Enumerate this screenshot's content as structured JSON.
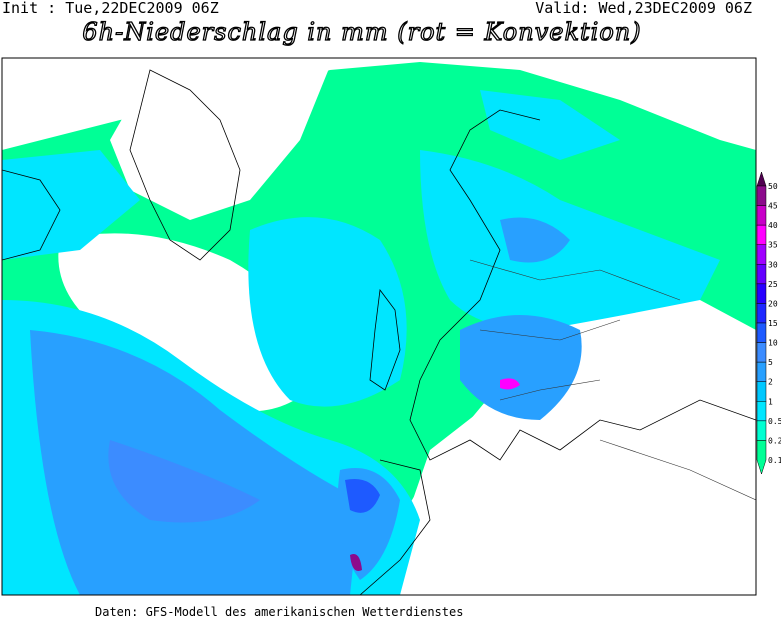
{
  "header": {
    "init": "Init : Tue,22DEC2009 06Z",
    "valid": "Valid: Wed,23DEC2009 06Z",
    "title": "6h-Niederschlag in mm (rot = Konvektion)"
  },
  "legend": {
    "levels": [
      {
        "label": "50",
        "color": "#500050"
      },
      {
        "label": "45",
        "color": "#8c0a8c"
      },
      {
        "label": "40",
        "color": "#c800c8"
      },
      {
        "label": "35",
        "color": "#ff00ff"
      },
      {
        "label": "30",
        "color": "#a000ff"
      },
      {
        "label": "25",
        "color": "#6400ff"
      },
      {
        "label": "20",
        "color": "#2800ff"
      },
      {
        "label": "15",
        "color": "#1e28ff"
      },
      {
        "label": "10",
        "color": "#1e5aff"
      },
      {
        "label": "5",
        "color": "#3c8cff"
      },
      {
        "label": "2",
        "color": "#28a0ff"
      },
      {
        "label": "1",
        "color": "#00c8ff"
      },
      {
        "label": "0.5",
        "color": "#00e6ff"
      },
      {
        "label": "0.2",
        "color": "#00ffd2"
      },
      {
        "label": "0.1",
        "color": "#00ff96"
      }
    ]
  },
  "footer": {
    "source": "Daten: GFS-Modell des amerikanischen Wetterdienstes"
  }
}
